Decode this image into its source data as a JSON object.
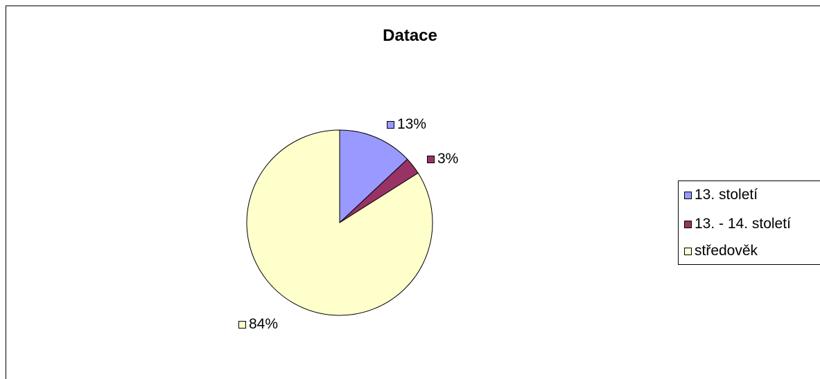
{
  "chart_data": {
    "type": "pie",
    "title": "Datace",
    "categories": [
      "13. století",
      "13. - 14. století",
      "středověk"
    ],
    "values": [
      13,
      3,
      84
    ],
    "value_labels": [
      "13%",
      "3%",
      "84%"
    ],
    "colors": [
      "#9999ff",
      "#993366",
      "#ffffcc"
    ],
    "legend": "right"
  }
}
